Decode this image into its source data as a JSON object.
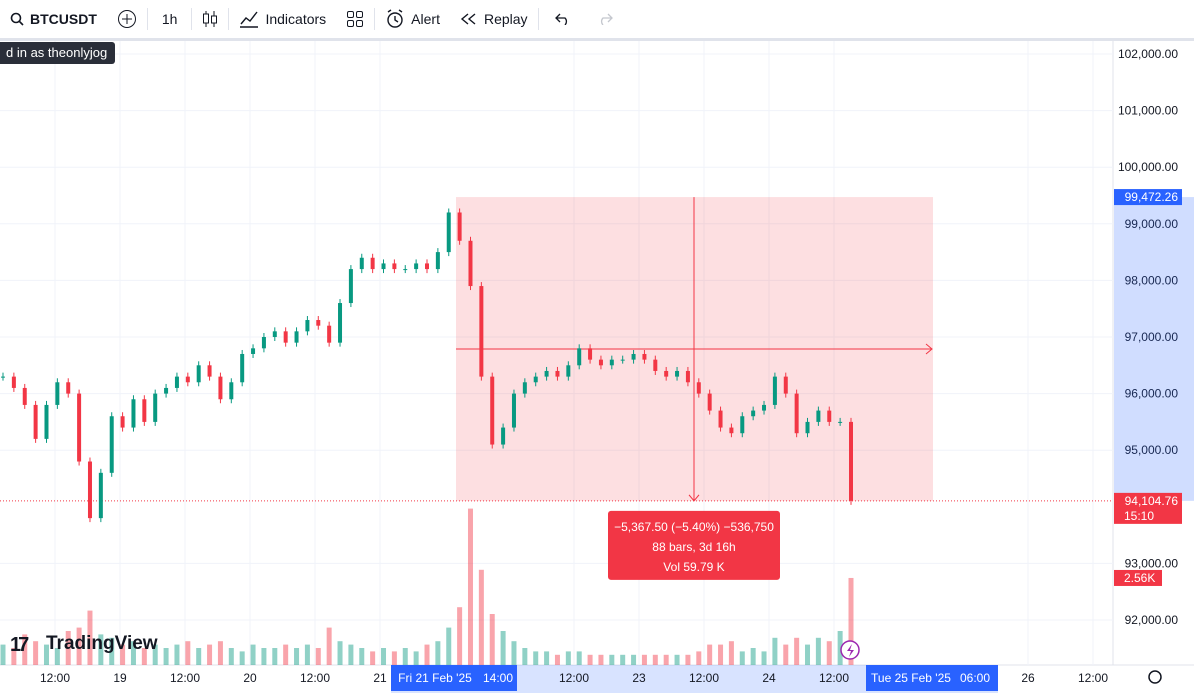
{
  "toolbar": {
    "symbol": "BTCUSDT",
    "interval": "1h",
    "indicators": "Indicators",
    "alert": "Alert",
    "replay": "Replay"
  },
  "session_badge": "d in as theonlyjog",
  "logo": "TradingView",
  "price_axis": {
    "ticks": [
      {
        "value": 102000,
        "label": "102,000.00"
      },
      {
        "value": 101000,
        "label": "101,000.00"
      },
      {
        "value": 100000,
        "label": "100,000.00"
      },
      {
        "value": 99000,
        "label": "99,000.00"
      },
      {
        "value": 98000,
        "label": "98,000.00"
      },
      {
        "value": 97000,
        "label": "97,000.00"
      },
      {
        "value": 96000,
        "label": "96,000.00"
      },
      {
        "value": 95000,
        "label": "95,000.00"
      },
      {
        "value": 93000,
        "label": "93,000.00"
      },
      {
        "value": 92000,
        "label": "92,000.00"
      }
    ],
    "range_high": {
      "value": 99472.26,
      "label": "99,472.26"
    },
    "last_price": {
      "value": 94104.76,
      "label": "94,104.76"
    },
    "countdown": "15:10",
    "last_volume": {
      "value": 2.56,
      "label": "2.56K"
    }
  },
  "time_axis": [
    "12:00",
    "19",
    "12:00",
    "20",
    "12:00",
    "21",
    "Fri 21 Feb '25",
    "14:00",
    "12:00",
    "23",
    "12:00",
    "24",
    "12:00",
    "Tue 25 Feb '25",
    "06:00",
    "26",
    "12:00"
  ],
  "measurement": {
    "change": "−5,367.50 (−5.40%) −536,750",
    "bars": "88 bars, 3d 16h",
    "volume": "Vol 59.79 K"
  },
  "candles": {
    "closes": [
      96300,
      96100,
      95800,
      95200,
      95800,
      96200,
      96000,
      94800,
      93800,
      94600,
      95600,
      95400,
      95900,
      95500,
      96000,
      96100,
      96300,
      96200,
      96500,
      96300,
      95900,
      96200,
      96700,
      96800,
      97000,
      97100,
      96900,
      97100,
      97300,
      97200,
      96900,
      97600,
      98200,
      98400,
      98200,
      98300,
      98200,
      98200,
      98300,
      98200,
      98500,
      99200,
      98700,
      97900,
      96300,
      95100,
      95400,
      96000,
      96200,
      96300,
      96400,
      96300,
      96500,
      96800,
      96600,
      96500,
      96600,
      96600,
      96700,
      96600,
      96400,
      96300,
      96400,
      96200,
      96000,
      95700,
      95400,
      95300,
      95600,
      95700,
      95800,
      96300,
      96000,
      95300,
      95500,
      95700,
      95500,
      95500,
      94104.76
    ],
    "volumes_k": [
      0.6,
      0.5,
      0.9,
      0.7,
      0.6,
      0.5,
      1.0,
      1.1,
      1.6,
      0.9,
      0.8,
      0.6,
      0.7,
      0.5,
      0.6,
      0.5,
      0.6,
      0.7,
      0.5,
      0.6,
      0.7,
      0.5,
      0.4,
      0.6,
      0.5,
      0.5,
      0.6,
      0.5,
      0.6,
      0.5,
      1.1,
      0.7,
      0.6,
      0.5,
      0.4,
      0.5,
      0.4,
      0.5,
      0.4,
      0.6,
      0.7,
      1.1,
      1.7,
      4.6,
      2.8,
      1.5,
      1.0,
      0.7,
      0.5,
      0.4,
      0.4,
      0.3,
      0.4,
      0.4,
      0.3,
      0.3,
      0.3,
      0.3,
      0.3,
      0.3,
      0.3,
      0.3,
      0.3,
      0.3,
      0.4,
      0.6,
      0.6,
      0.7,
      0.4,
      0.5,
      0.4,
      0.8,
      0.6,
      0.8,
      0.6,
      0.8,
      0.7,
      1.0,
      2.56
    ]
  }
}
